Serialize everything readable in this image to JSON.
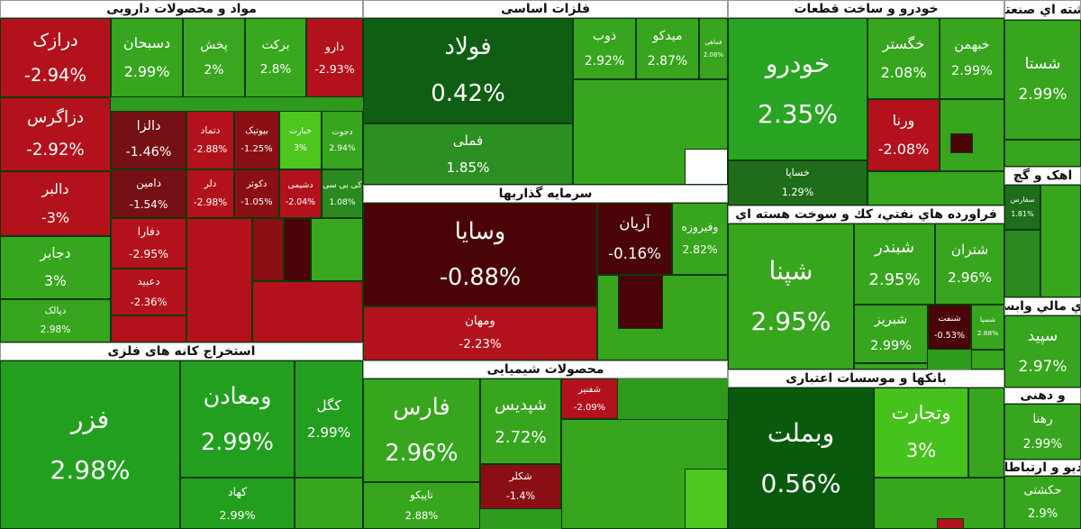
{
  "sectors": [
    {
      "title": "مواد و محصولات دارویی",
      "tiles": [
        {
          "name": "دارو",
          "change": "-2.93%",
          "color": "#b3121c"
        },
        {
          "name": "برکت",
          "change": "2.8%",
          "color": "#39a81e"
        },
        {
          "name": "پخش",
          "change": "2%",
          "color": "#3aa61f"
        },
        {
          "name": "دسبحان",
          "change": "2.99%",
          "color": "#37a51d"
        },
        {
          "name": "درازک",
          "change": "-2.94%",
          "color": "#b3121c"
        },
        {
          "name": "دزاگرس",
          "change": "-2.92%",
          "color": "#b3121c"
        },
        {
          "name": "دالبر",
          "change": "-3%",
          "color": "#b3121c"
        },
        {
          "name": "دجابر",
          "change": "3%",
          "color": "#37a51d"
        },
        {
          "name": "دپالک",
          "change": "2.98%",
          "color": "#37a51d"
        },
        {
          "name": "دالزا",
          "change": "-1.46%",
          "color": "#751014"
        },
        {
          "name": "دتماد",
          "change": "-2.88%",
          "color": "#b3121c"
        },
        {
          "name": "بیوتیک",
          "change": "-1.25%",
          "color": "#8a0f15"
        },
        {
          "name": "خبارت",
          "change": "3%",
          "color": "#4dc61e"
        },
        {
          "name": "دجوت",
          "change": "2.94%",
          "color": "#37a51d"
        },
        {
          "name": "دامین",
          "change": "-1.54%",
          "color": "#751014"
        },
        {
          "name": "دلر",
          "change": "-2.98%",
          "color": "#b3121c"
        },
        {
          "name": "دکوثر",
          "change": "-1.05%",
          "color": "#8a0f15"
        },
        {
          "name": "دشیمی",
          "change": "-2.04%",
          "color": "#b3121c"
        },
        {
          "name": "کی بی سی",
          "change": "1.08%",
          "color": "#2b8a1f"
        },
        {
          "name": "دفارا",
          "change": "-2.95%",
          "color": "#b3121c"
        },
        {
          "name": "دعبید",
          "change": "-2.36%",
          "color": "#b3121c"
        }
      ]
    },
    {
      "title": "استخراج کانه های فلزی",
      "tiles": [
        {
          "name": "فزر",
          "change": "2.98%",
          "color": "#239f1f"
        },
        {
          "name": "ومعادن",
          "change": "2.99%",
          "color": "#239f1f"
        },
        {
          "name": "کگل",
          "change": "2.99%",
          "color": "#239f1f"
        },
        {
          "name": "کهاد",
          "change": "2.99%",
          "color": "#239f1f"
        }
      ]
    },
    {
      "title": "فلزات اساسی",
      "tiles": [
        {
          "name": "فولاد",
          "change": "0.42%",
          "color": "#0f5e14"
        },
        {
          "name": "فملی",
          "change": "1.85%",
          "color": "#2c8f21"
        },
        {
          "name": "ذوب",
          "change": "2.92%",
          "color": "#37a51d"
        },
        {
          "name": "میدکو",
          "change": "2.87%",
          "color": "#37a51d"
        },
        {
          "name": "فماهی",
          "change": "2.08%",
          "color": "#37a51d"
        }
      ]
    },
    {
      "title": "سرمایه گذاریها",
      "tiles": [
        {
          "name": "وسایا",
          "change": "-0.88%",
          "color": "#4a0408"
        },
        {
          "name": "ومهان",
          "change": "-2.23%",
          "color": "#b3121c"
        },
        {
          "name": "آریان",
          "change": "-0.16%",
          "color": "#4a0408"
        },
        {
          "name": "وفیروزه",
          "change": "2.82%",
          "color": "#37a51d"
        }
      ]
    },
    {
      "title": "محصولات شیمیایی",
      "tiles": [
        {
          "name": "فارس",
          "change": "2.96%",
          "color": "#37a51d"
        },
        {
          "name": "شپدیس",
          "change": "2.72%",
          "color": "#37a51d"
        },
        {
          "name": "شکلر",
          "change": "-1.4%",
          "color": "#8a0f15"
        },
        {
          "name": "تاپیکو",
          "change": "2.88%",
          "color": "#37a51d"
        },
        {
          "name": "شفنیر",
          "change": "-2.09%",
          "color": "#b3121c"
        }
      ]
    },
    {
      "title": "خودرو و ساخت قطعات",
      "tiles": [
        {
          "name": "خودرو",
          "change": "2.35%",
          "color": "#2aa423"
        },
        {
          "name": "خساپا",
          "change": "1.29%",
          "color": "#1f6d1a"
        },
        {
          "name": "خگستر",
          "change": "2.08%",
          "color": "#37a51d"
        },
        {
          "name": "خبهمن",
          "change": "2.99%",
          "color": "#37a51d"
        },
        {
          "name": "ورنا",
          "change": "-2.08%",
          "color": "#b3121c"
        }
      ]
    },
    {
      "title": "فراورده هاي نفتي، كك و سوخت هسته اي",
      "tiles": [
        {
          "name": "شپنا",
          "change": "2.95%",
          "color": "#37a51d"
        },
        {
          "name": "شبندر",
          "change": "2.95%",
          "color": "#37a51d"
        },
        {
          "name": "شتران",
          "change": "2.96%",
          "color": "#37a51d"
        },
        {
          "name": "شبریز",
          "change": "2.99%",
          "color": "#37a51d"
        },
        {
          "name": "شنفت",
          "change": "-0.53%",
          "color": "#4a0408"
        },
        {
          "name": "شسپا",
          "change": "2.88%",
          "color": "#37a51d"
        }
      ]
    },
    {
      "title": "بانکها و موسسات اعتباری",
      "tiles": [
        {
          "name": "وبملت",
          "change": "0.56%",
          "color": "#0a5a0e"
        },
        {
          "name": "وتجارت",
          "change": "3%",
          "color": "#46c21c"
        }
      ]
    },
    {
      "title": "رشته اي صنعتي",
      "tiles": [
        {
          "name": "شستا",
          "change": "2.99%",
          "color": "#37a51d"
        }
      ]
    },
    {
      "title": "اهک و گچ",
      "tiles": [
        {
          "name": "سفارس",
          "change": "1.81%",
          "color": "#1f6d1a"
        }
      ]
    },
    {
      "title": "هاي مالي وابسته",
      "tiles": [
        {
          "name": "سپید",
          "change": "2.97%",
          "color": "#37a51d"
        }
      ]
    },
    {
      "title": "و دهنی",
      "tiles": [
        {
          "name": "رهنا",
          "change": "2.99%",
          "color": "#37a51d"
        }
      ]
    },
    {
      "title": "رادیو و ارتباطات",
      "tiles": [
        {
          "name": "حکشتی",
          "change": "2.9%",
          "color": "#37a51d"
        }
      ]
    }
  ]
}
